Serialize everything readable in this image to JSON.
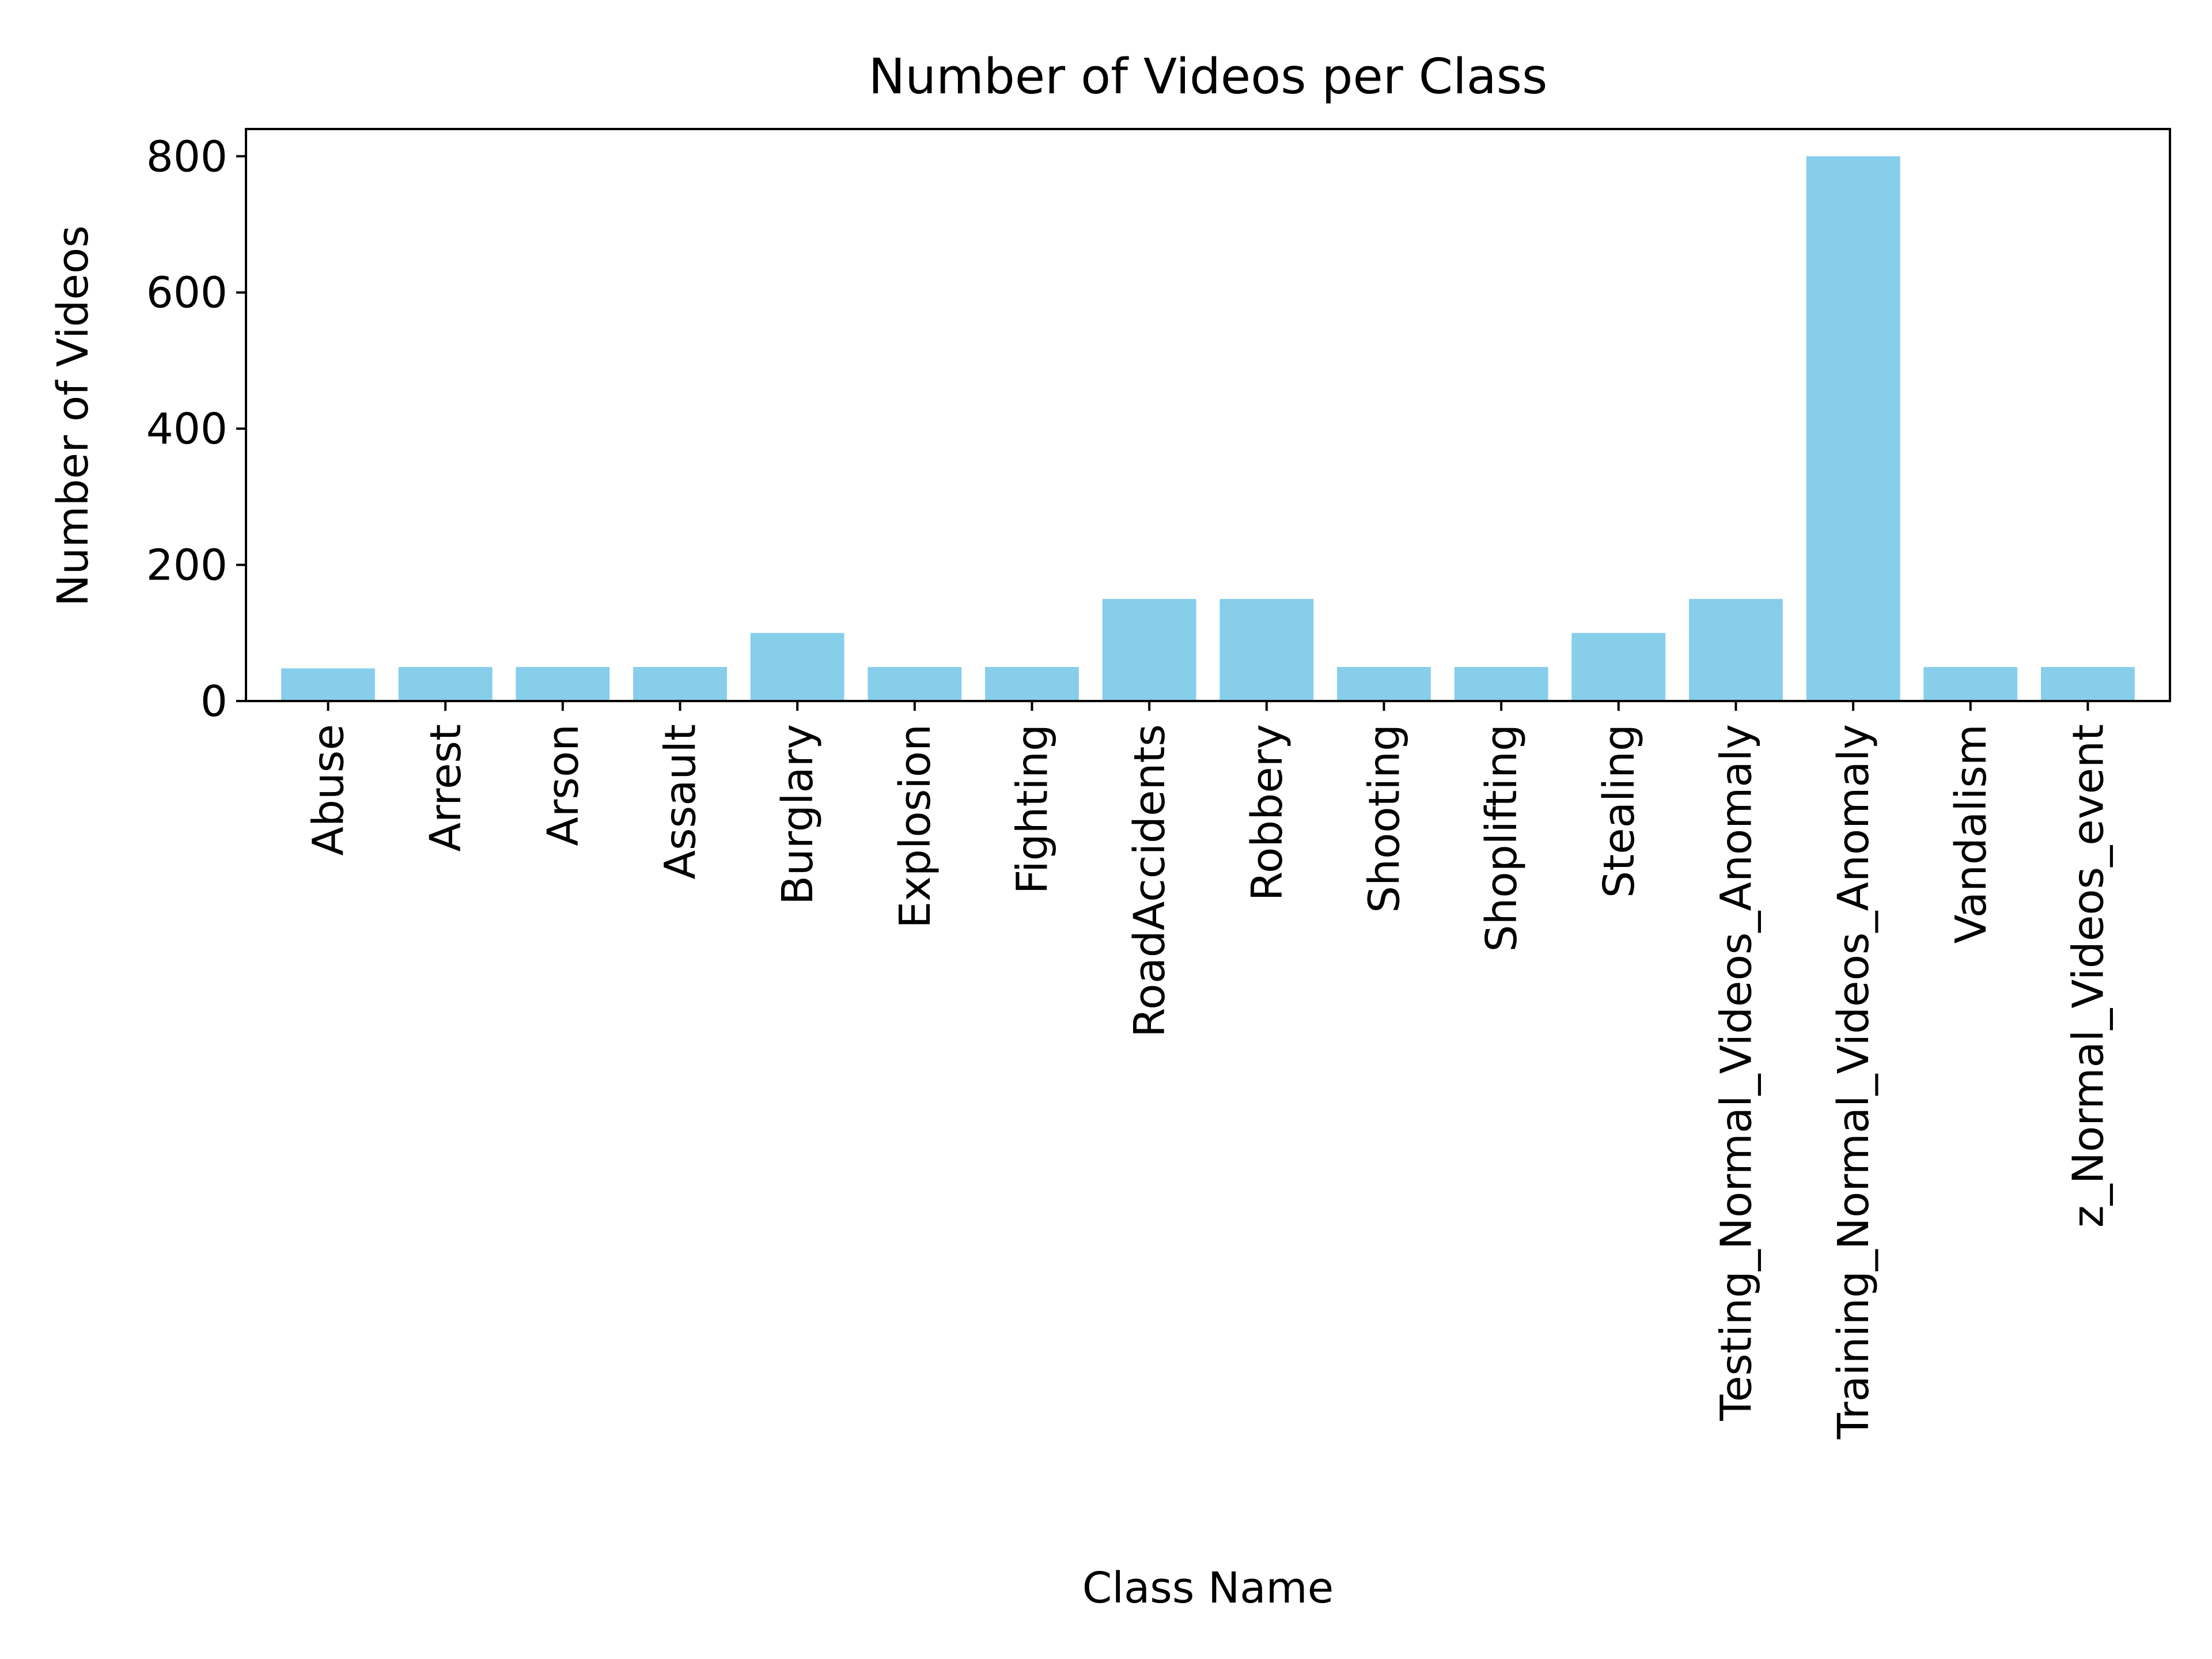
{
  "chart_data": {
    "type": "bar",
    "title": "Number of Videos per Class",
    "xlabel": "Class Name",
    "ylabel": "Number of Videos",
    "ylim": [
      0,
      840
    ],
    "yticks": [
      0,
      200,
      400,
      600,
      800
    ],
    "grid": false,
    "legend": "none",
    "bar_color": "#87CEEB",
    "categories": [
      "Abuse",
      "Arrest",
      "Arson",
      "Assault",
      "Burglary",
      "Explosion",
      "Fighting",
      "RoadAccidents",
      "Robbery",
      "Shooting",
      "Shoplifting",
      "Stealing",
      "Testing_Normal_Videos_Anomaly",
      "Training_Normal_Videos_Anomaly",
      "Vandalism",
      "z_Normal_Videos_event"
    ],
    "values": [
      48,
      50,
      50,
      50,
      100,
      50,
      50,
      150,
      150,
      50,
      50,
      100,
      150,
      800,
      50,
      50
    ]
  }
}
